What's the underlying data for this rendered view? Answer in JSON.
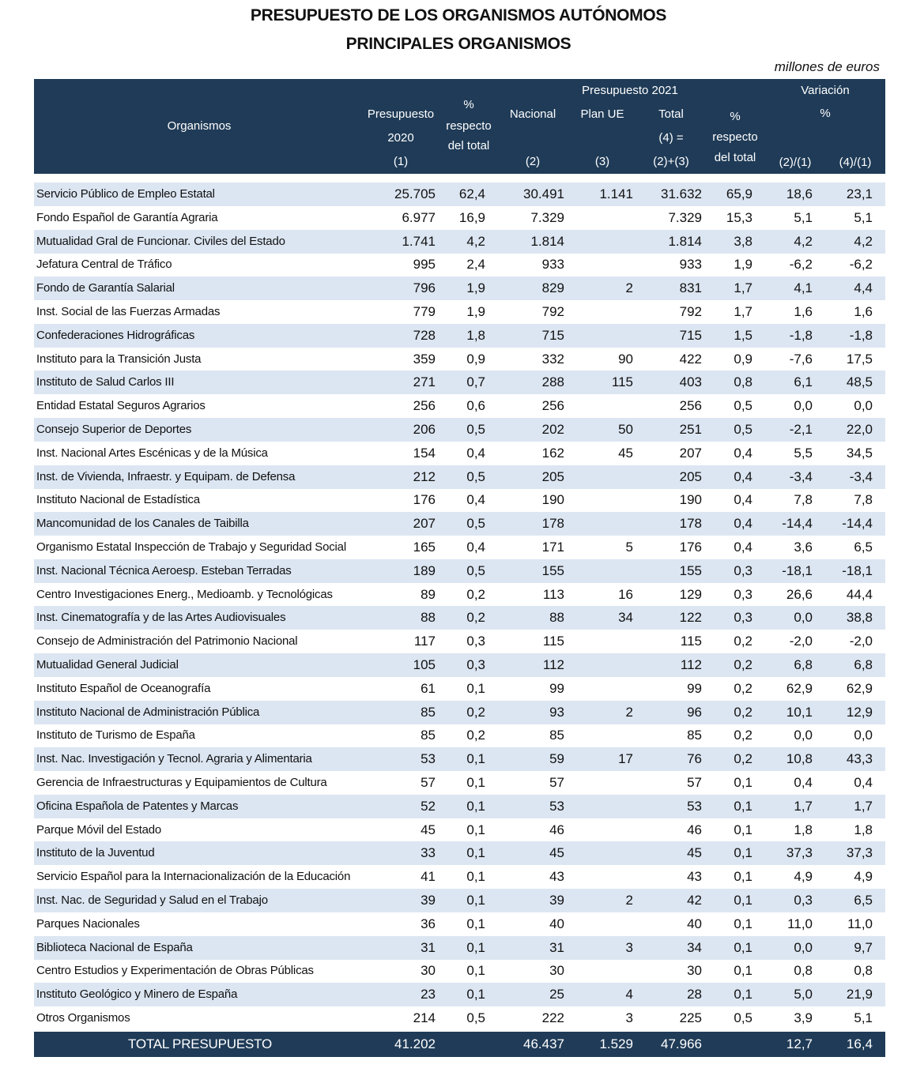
{
  "header": {
    "title": "PRESUPUESTO DE LOS ORGANISMOS AUTÓNOMOS",
    "subtitle": "PRINCIPALES ORGANISMOS",
    "units": "millones de euros"
  },
  "table": {
    "columns": {
      "organismos": [
        "Organismos"
      ],
      "presupuesto_2020": [
        "Presupuesto",
        "2020",
        "(1)"
      ],
      "pct_total_2020": [
        "%",
        "respecto",
        "del total"
      ],
      "group_2021": [
        "Presupuesto 2021"
      ],
      "nacional": [
        "Nacional",
        "(2)"
      ],
      "plan_ue": [
        "Plan UE",
        "(3)"
      ],
      "total": [
        "Total",
        "(4) =",
        "(2)+(3)"
      ],
      "pct_total_2021": [
        "%",
        "respecto",
        "del total"
      ],
      "variacion": [
        "Variación",
        "%"
      ],
      "var_2_1": [
        "(2)/(1)"
      ],
      "var_4_1": [
        "(4)/(1)"
      ]
    },
    "rows": [
      [
        "Servicio Público de Empleo Estatal",
        "25.705",
        "62,4",
        "30.491",
        "1.141",
        "31.632",
        "65,9",
        "18,6",
        "23,1"
      ],
      [
        "Fondo Español de Garantía Agraria",
        "6.977",
        "16,9",
        "7.329",
        null,
        "7.329",
        "15,3",
        "5,1",
        "5,1"
      ],
      [
        "Mutualidad Gral  de Funcionar. Civiles del Estado",
        "1.741",
        "4,2",
        "1.814",
        null,
        "1.814",
        "3,8",
        "4,2",
        "4,2"
      ],
      [
        "Jefatura Central de Tráfico",
        "995",
        "2,4",
        "933",
        null,
        "933",
        "1,9",
        "-6,2",
        "-6,2"
      ],
      [
        "Fondo de Garantía Salarial",
        "796",
        "1,9",
        "829",
        "2",
        "831",
        "1,7",
        "4,1",
        "4,4"
      ],
      [
        "Inst. Social de las Fuerzas Armadas",
        "779",
        "1,9",
        "792",
        null,
        "792",
        "1,7",
        "1,6",
        "1,6"
      ],
      [
        "Confederaciones Hidrográficas",
        "728",
        "1,8",
        "715",
        null,
        "715",
        "1,5",
        "-1,8",
        "-1,8"
      ],
      [
        "Instituto para la Transición Justa",
        "359",
        "0,9",
        "332",
        "90",
        "422",
        "0,9",
        "-7,6",
        "17,5"
      ],
      [
        "Instituto de Salud Carlos III",
        "271",
        "0,7",
        "288",
        "115",
        "403",
        "0,8",
        "6,1",
        "48,5"
      ],
      [
        "Entidad Estatal Seguros Agrarios",
        "256",
        "0,6",
        "256",
        null,
        "256",
        "0,5",
        "0,0",
        "0,0"
      ],
      [
        "Consejo Superior de Deportes",
        "206",
        "0,5",
        "202",
        "50",
        "251",
        "0,5",
        "-2,1",
        "22,0"
      ],
      [
        "Inst. Nacional Artes Escénicas y de la Música",
        "154",
        "0,4",
        "162",
        "45",
        "207",
        "0,4",
        "5,5",
        "34,5"
      ],
      [
        "Inst. de Vivienda, Infraestr. y Equipam. de Defensa",
        "212",
        "0,5",
        "205",
        null,
        "205",
        "0,4",
        "-3,4",
        "-3,4"
      ],
      [
        "Instituto Nacional de Estadística",
        "176",
        "0,4",
        "190",
        null,
        "190",
        "0,4",
        "7,8",
        "7,8"
      ],
      [
        "Mancomunidad de los Canales de Taibilla",
        "207",
        "0,5",
        "178",
        null,
        "178",
        "0,4",
        "-14,4",
        "-14,4"
      ],
      [
        "Organismo Estatal Inspección de Trabajo y Seguridad Social",
        "165",
        "0,4",
        "171",
        "5",
        "176",
        "0,4",
        "3,6",
        "6,5"
      ],
      [
        "Inst. Nacional Técnica Aeroesp. Esteban Terradas",
        "189",
        "0,5",
        "155",
        null,
        "155",
        "0,3",
        "-18,1",
        "-18,1"
      ],
      [
        "Centro Investigaciones Energ., Medioamb. y Tecnológicas",
        "89",
        "0,2",
        "113",
        "16",
        "129",
        "0,3",
        "26,6",
        "44,4"
      ],
      [
        "Inst. Cinematografía y de las Artes  Audiovisuales",
        "88",
        "0,2",
        "88",
        "34",
        "122",
        "0,3",
        "0,0",
        "38,8"
      ],
      [
        "Consejo de Administración del Patrimonio Nacional",
        "117",
        "0,3",
        "115",
        null,
        "115",
        "0,2",
        "-2,0",
        "-2,0"
      ],
      [
        "Mutualidad General  Judicial",
        "105",
        "0,3",
        "112",
        null,
        "112",
        "0,2",
        "6,8",
        "6,8"
      ],
      [
        "Instituto Español de Oceanografía",
        "61",
        "0,1",
        "99",
        null,
        "99",
        "0,2",
        "62,9",
        "62,9"
      ],
      [
        "Instituto Nacional de Administración Pública",
        "85",
        "0,2",
        "93",
        "2",
        "96",
        "0,2",
        "10,1",
        "12,9"
      ],
      [
        "Instituto de Turismo de España",
        "85",
        "0,2",
        "85",
        null,
        "85",
        "0,2",
        "0,0",
        "0,0"
      ],
      [
        "Inst. Nac. Investigación y Tecnol. Agraria y Alimentaria",
        "53",
        "0,1",
        "59",
        "17",
        "76",
        "0,2",
        "10,8",
        "43,3"
      ],
      [
        "Gerencia de Infraestructuras y Equipamientos de Cultura",
        "57",
        "0,1",
        "57",
        null,
        "57",
        "0,1",
        "0,4",
        "0,4"
      ],
      [
        "Oficina Española de Patentes y Marcas",
        "52",
        "0,1",
        "53",
        null,
        "53",
        "0,1",
        "1,7",
        "1,7"
      ],
      [
        "Parque Móvil del Estado",
        "45",
        "0,1",
        "46",
        null,
        "46",
        "0,1",
        "1,8",
        "1,8"
      ],
      [
        "Instituto de la Juventud",
        "33",
        "0,1",
        "45",
        null,
        "45",
        "0,1",
        "37,3",
        "37,3"
      ],
      [
        "Servicio Español para la Internacionalización de la Educación",
        "41",
        "0,1",
        "43",
        null,
        "43",
        "0,1",
        "4,9",
        "4,9"
      ],
      [
        "Inst. Nac. de Seguridad y Salud en el Trabajo",
        "39",
        "0,1",
        "39",
        "2",
        "42",
        "0,1",
        "0,3",
        "6,5"
      ],
      [
        "Parques Nacionales",
        "36",
        "0,1",
        "40",
        null,
        "40",
        "0,1",
        "11,0",
        "11,0"
      ],
      [
        "Biblioteca Nacional de España",
        "31",
        "0,1",
        "31",
        "3",
        "34",
        "0,1",
        "0,0",
        "9,7"
      ],
      [
        "Centro Estudios y Experimentación de Obras Públicas",
        "30",
        "0,1",
        "30",
        null,
        "30",
        "0,1",
        "0,8",
        "0,8"
      ],
      [
        "Instituto Geológico y Minero de España",
        "23",
        "0,1",
        "25",
        "4",
        "28",
        "0,1",
        "5,0",
        "21,9"
      ],
      [
        "Otros Organismos",
        "214",
        "0,5",
        "222",
        "3",
        "225",
        "0,5",
        "3,9",
        "5,1"
      ]
    ],
    "total": [
      "TOTAL PRESUPUESTO",
      "41.202",
      null,
      "46.437",
      "1.529",
      "47.966",
      null,
      "12,7",
      "16,4"
    ]
  }
}
